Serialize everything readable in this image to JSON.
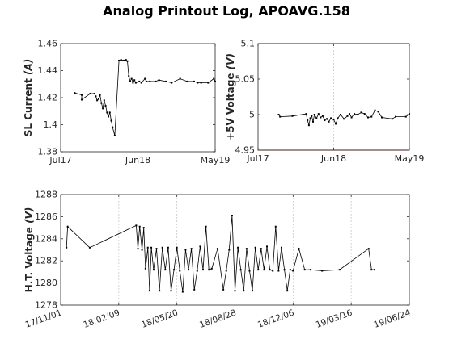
{
  "title": "Analog Printout Log, APOAVG.158",
  "colors": {
    "line": "#000000",
    "limit": "#cc0000",
    "grid": "#c8c8c8",
    "axis": "#262626"
  },
  "chart_data": [
    {
      "id": "sl",
      "type": "line",
      "title": "",
      "ylabel_prefix": "SL Current ",
      "ylabel_unit": "(A)",
      "xlabel": "",
      "ylim": [
        1.38,
        1.46
      ],
      "yticks": [
        1.38,
        1.4,
        1.42,
        1.44,
        1.46
      ],
      "ytick_labels": [
        "1.38",
        "1.4",
        "1.42",
        "1.44",
        "1.46"
      ],
      "xlim": [
        0,
        22
      ],
      "xticks": [
        0,
        11,
        22
      ],
      "xtick_labels": [
        "Jul17",
        "Jun18",
        "May19"
      ],
      "grid": "x-only",
      "limits": [],
      "x": [
        2.0,
        3.0,
        3.0,
        4.2,
        4.8,
        5.0,
        5.2,
        5.4,
        5.6,
        5.8,
        6.0,
        6.2,
        6.4,
        6.6,
        6.8,
        7.0,
        7.2,
        7.4,
        7.7,
        8.3,
        8.6,
        9.0,
        9.3,
        9.5,
        9.7,
        9.9,
        10.1,
        10.3,
        10.5,
        10.7,
        11.2,
        11.5,
        12.0,
        12.2,
        12.7,
        13.5,
        14.0,
        15.0,
        15.8,
        17.0,
        18.0,
        19.0,
        19.5,
        20.0,
        21.0,
        21.8,
        22.0
      ],
      "y": [
        1.4235,
        1.422,
        1.4185,
        1.423,
        1.423,
        1.421,
        1.418,
        1.419,
        1.422,
        1.416,
        1.412,
        1.418,
        1.414,
        1.409,
        1.406,
        1.409,
        1.403,
        1.398,
        1.392,
        1.4475,
        1.448,
        1.4475,
        1.448,
        1.447,
        1.436,
        1.432,
        1.434,
        1.431,
        1.433,
        1.431,
        1.432,
        1.431,
        1.434,
        1.432,
        1.432,
        1.432,
        1.433,
        1.432,
        1.431,
        1.434,
        1.432,
        1.432,
        1.431,
        1.431,
        1.431,
        1.434,
        1.432
      ]
    },
    {
      "id": "v5",
      "type": "line",
      "title": "",
      "ylabel_prefix": "+5V Voltage ",
      "ylabel_unit": "(V)",
      "xlabel": "",
      "ylim": [
        4.95,
        5.1
      ],
      "yticks": [
        4.95,
        5.0,
        5.05,
        5.1
      ],
      "ytick_labels": [
        "4.95",
        "5",
        "5.05",
        "5.1"
      ],
      "xlim": [
        0,
        22
      ],
      "xticks": [
        0,
        11,
        22
      ],
      "xtick_labels": [
        "Jul17",
        "Jun18",
        "May19"
      ],
      "grid": "x-only",
      "limits": [
        4.95,
        5.1
      ],
      "x": [
        3.0,
        3.2,
        5.0,
        7.0,
        7.2,
        7.4,
        7.6,
        7.8,
        8.0,
        8.2,
        8.5,
        8.8,
        9.1,
        9.4,
        9.7,
        10.0,
        10.3,
        10.6,
        11.0,
        11.3,
        11.6,
        12.0,
        12.5,
        13.0,
        13.3,
        13.6,
        14.0,
        14.5,
        15.0,
        15.5,
        16.0,
        16.5,
        17.0,
        17.5,
        18.0,
        19.5,
        20.0,
        21.5,
        22.0
      ],
      "y": [
        5.0,
        4.997,
        4.998,
        5.001,
        4.992,
        4.985,
        4.995,
        4.998,
        4.99,
        5.0,
        4.995,
        5.001,
        4.996,
        4.998,
        4.992,
        4.994,
        4.99,
        4.995,
        4.993,
        4.987,
        4.995,
        5.0,
        4.994,
        4.998,
        5.001,
        4.996,
        5.001,
        5.0,
        5.003,
        5.001,
        4.996,
        4.997,
        5.006,
        5.004,
        4.996,
        4.994,
        4.997,
        4.997,
        5.001
      ]
    },
    {
      "id": "ht",
      "type": "line",
      "title": "",
      "ylabel_prefix": "H.T. Voltage ",
      "ylabel_unit": "(V)",
      "xlabel": "",
      "ylim": [
        1278,
        1288
      ],
      "yticks": [
        1278,
        1280,
        1282,
        1284,
        1286,
        1288
      ],
      "ytick_labels": [
        "1278",
        "1280",
        "1282",
        "1284",
        "1286",
        "1288"
      ],
      "xlim": [
        0,
        6
      ],
      "xticks": [
        0,
        1,
        2,
        3,
        4,
        5,
        6
      ],
      "xtick_labels": [
        "17/11/01",
        "18/02/09",
        "18/05/20",
        "18/08/28",
        "18/12/06",
        "19/03/16",
        "19/06/24"
      ],
      "grid": "x-only",
      "limits": [],
      "x": [
        0.1,
        0.12,
        0.5,
        1.3,
        1.33,
        1.36,
        1.4,
        1.43,
        1.46,
        1.5,
        1.53,
        1.56,
        1.6,
        1.65,
        1.7,
        1.75,
        1.8,
        1.85,
        1.9,
        1.95,
        2.0,
        2.05,
        2.1,
        2.15,
        2.2,
        2.25,
        2.3,
        2.35,
        2.4,
        2.45,
        2.5,
        2.55,
        2.6,
        2.7,
        2.8,
        2.85,
        2.9,
        2.95,
        3.0,
        3.05,
        3.1,
        3.15,
        3.2,
        3.25,
        3.3,
        3.35,
        3.4,
        3.45,
        3.5,
        3.55,
        3.6,
        3.65,
        3.7,
        3.75,
        3.8,
        3.85,
        3.9,
        3.95,
        4.0,
        4.1,
        4.2,
        4.3,
        4.5,
        4.8,
        5.3,
        5.35,
        5.4
      ],
      "y": [
        1283.2,
        1285.1,
        1283.2,
        1285.2,
        1283.1,
        1285.1,
        1283.0,
        1285.0,
        1281.3,
        1283.2,
        1279.3,
        1283.2,
        1281.2,
        1283.1,
        1279.3,
        1283.2,
        1281.2,
        1283.2,
        1279.3,
        1281.2,
        1283.2,
        1281.1,
        1279.2,
        1283.0,
        1281.2,
        1283.1,
        1279.4,
        1281.1,
        1283.3,
        1281.2,
        1285.1,
        1281.2,
        1281.3,
        1283.1,
        1279.4,
        1281.1,
        1283.0,
        1286.1,
        1279.3,
        1283.2,
        1281.2,
        1279.3,
        1283.1,
        1281.1,
        1279.3,
        1283.2,
        1281.2,
        1283.1,
        1281.2,
        1283.3,
        1281.2,
        1281.1,
        1285.1,
        1281.1,
        1283.2,
        1281.2,
        1279.3,
        1281.2,
        1281.1,
        1283.1,
        1281.2,
        1281.2,
        1281.1,
        1281.2,
        1283.1,
        1281.2,
        1281.2
      ]
    }
  ]
}
